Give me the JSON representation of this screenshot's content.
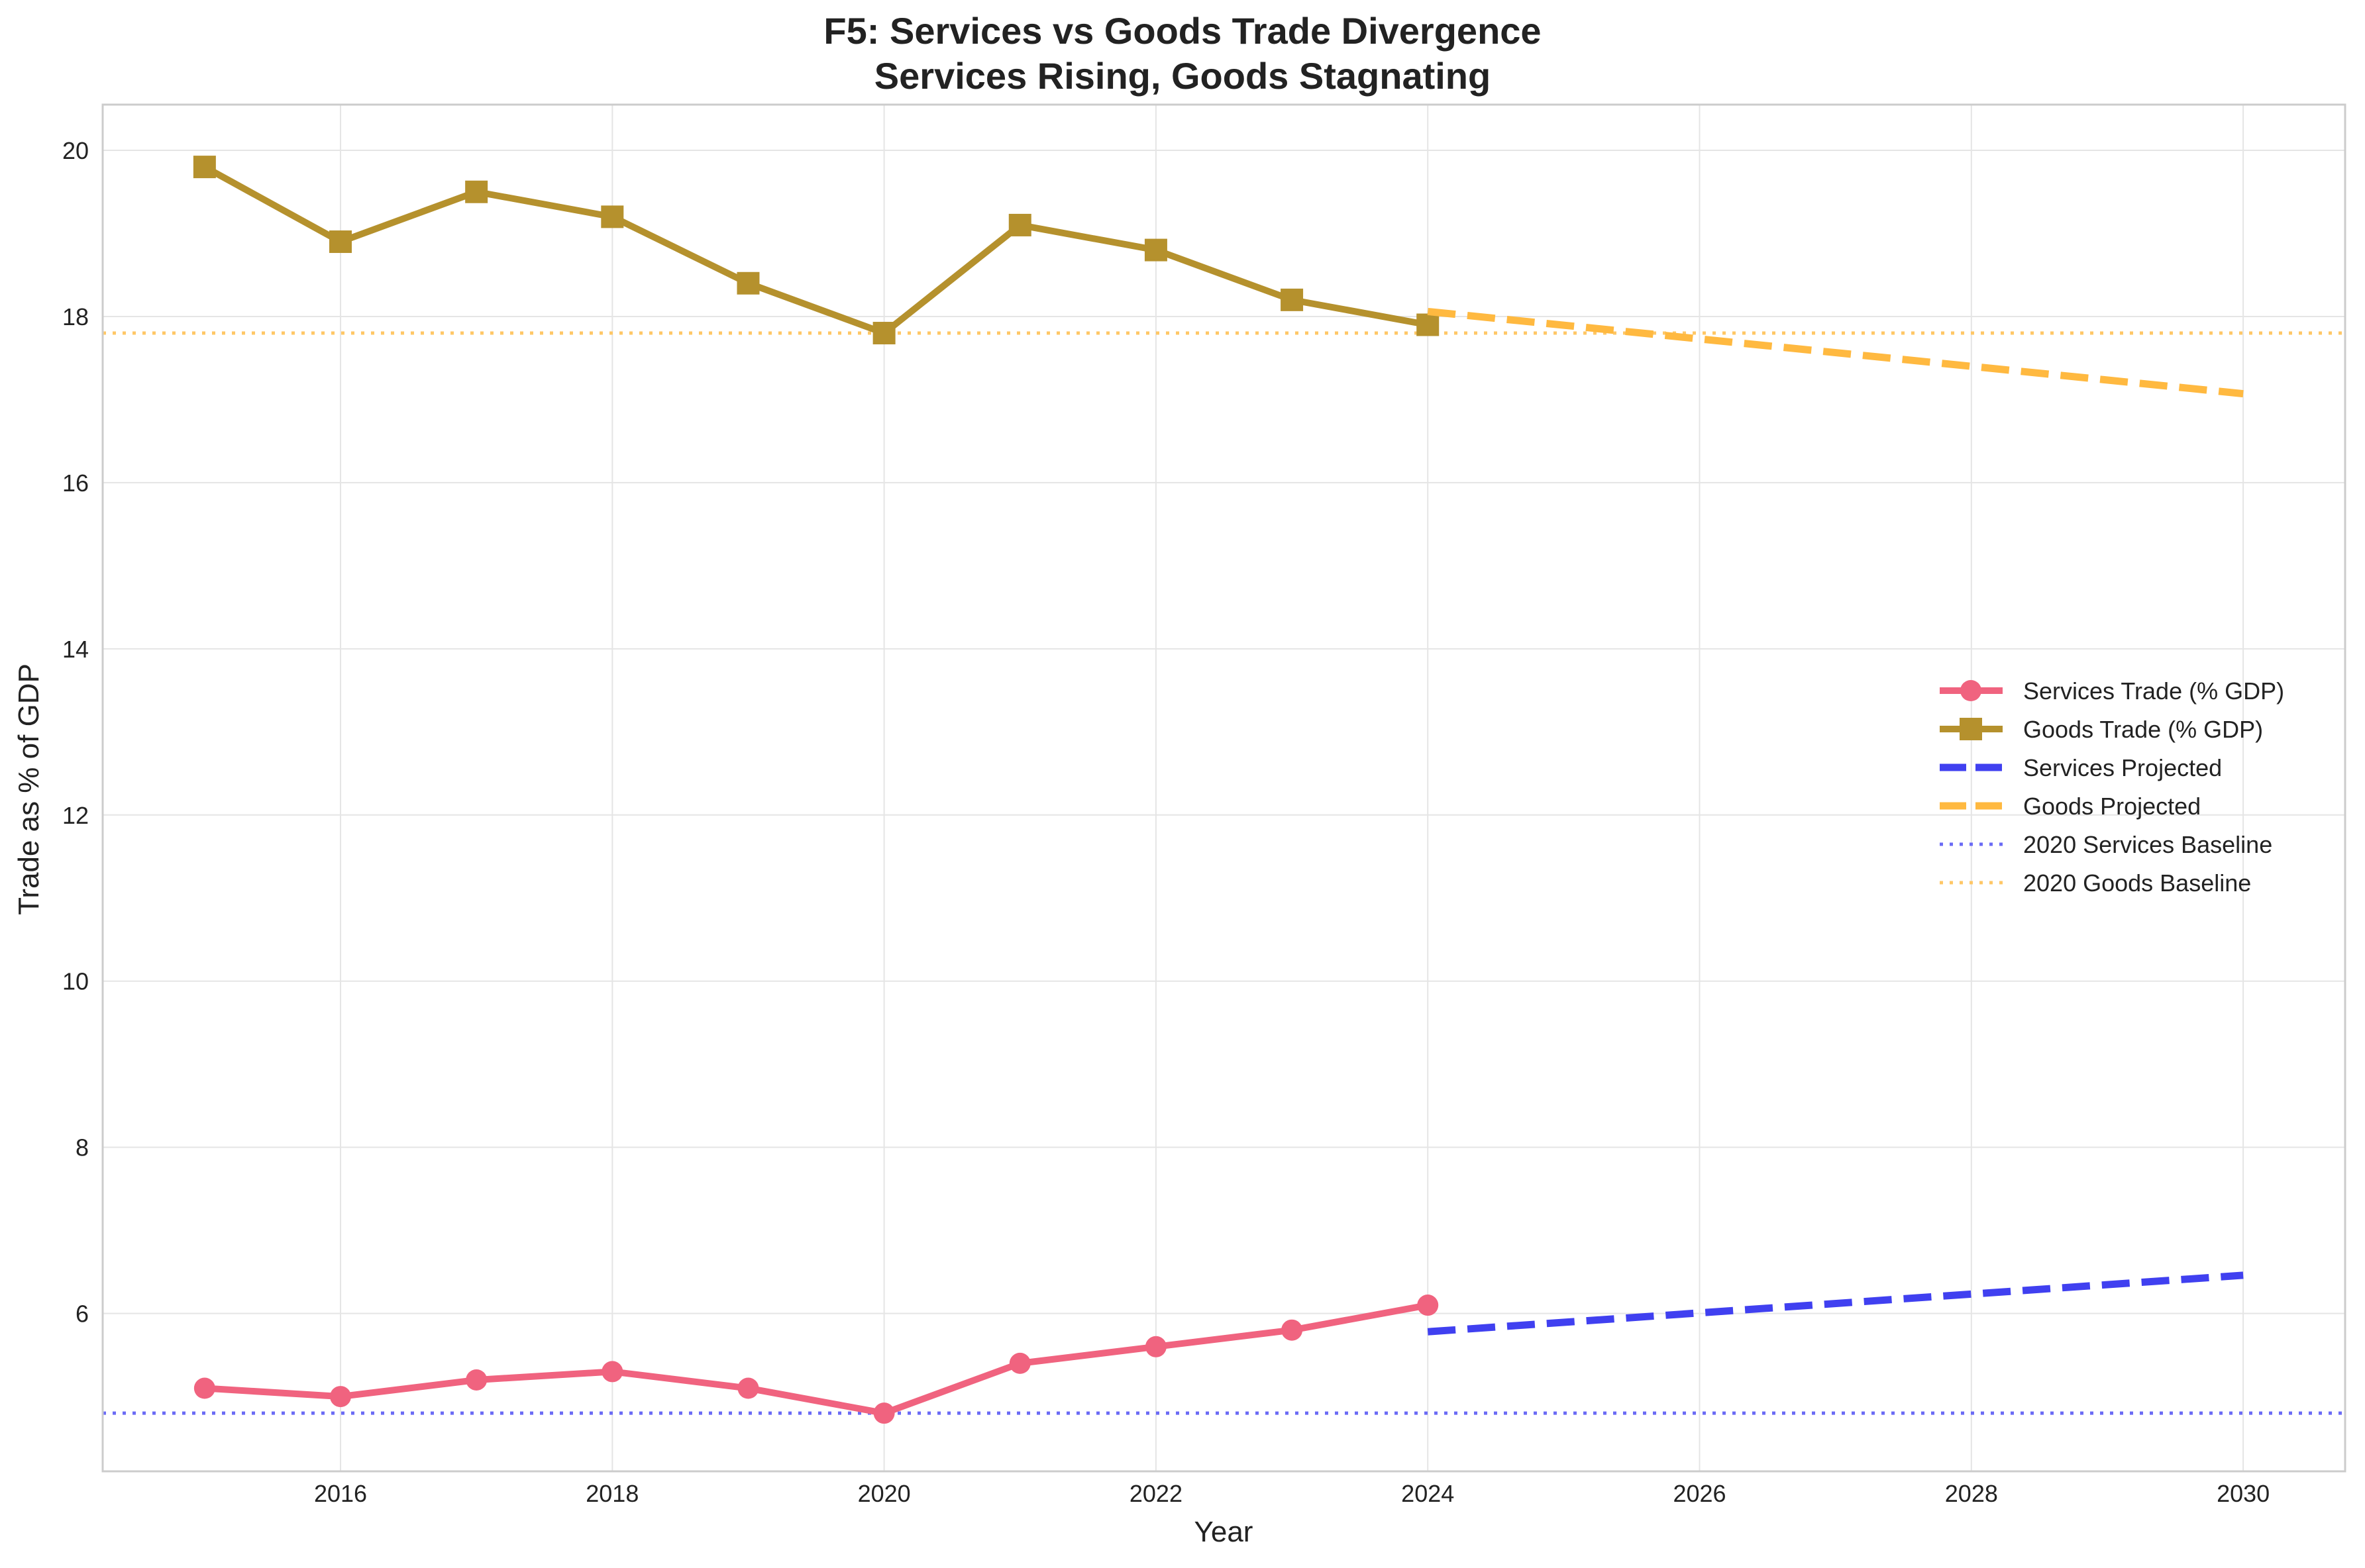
{
  "chart_data": {
    "type": "line",
    "title": "F5: Services vs Goods Trade Divergence",
    "subtitle": "Services Rising, Goods Stagnating",
    "xlabel": "Year",
    "ylabel": "Trade as % of GDP",
    "xlim": [
      2014.25,
      2030.75
    ],
    "ylim": [
      4.1,
      20.55
    ],
    "x_ticks": [
      2016,
      2018,
      2020,
      2022,
      2024,
      2026,
      2028,
      2030
    ],
    "y_ticks": [
      6,
      8,
      10,
      12,
      14,
      16,
      18,
      20
    ],
    "grid": true,
    "legend_position": "center-right",
    "series": [
      {
        "name": "Services Trade (% GDP)",
        "style": "solid-circle",
        "color": "#f0637f",
        "x": [
          2015,
          2016,
          2017,
          2018,
          2019,
          2020,
          2021,
          2022,
          2023,
          2024
        ],
        "values": [
          5.1,
          5.0,
          5.2,
          5.3,
          5.1,
          4.8,
          5.4,
          5.6,
          5.8,
          6.1
        ]
      },
      {
        "name": "Goods Trade (% GDP)",
        "style": "solid-square",
        "color": "#b5912d",
        "x": [
          2015,
          2016,
          2017,
          2018,
          2019,
          2020,
          2021,
          2022,
          2023,
          2024
        ],
        "values": [
          19.8,
          18.9,
          19.5,
          19.2,
          18.4,
          17.8,
          19.1,
          18.8,
          18.2,
          17.9
        ]
      },
      {
        "name": "Services Projected",
        "style": "dashed",
        "color": "#4040f0",
        "x": [
          2024,
          2030
        ],
        "values": [
          5.78,
          6.46
        ]
      },
      {
        "name": "Goods Projected",
        "style": "dashed",
        "color": "#ffb940",
        "x": [
          2024,
          2030
        ],
        "values": [
          18.06,
          17.07
        ]
      },
      {
        "name": "2020 Services Baseline",
        "style": "dotted-hline",
        "color": "#6b6bf5",
        "values": [
          4.8
        ]
      },
      {
        "name": "2020 Goods Baseline",
        "style": "dotted-hline",
        "color": "#ffc766",
        "values": [
          17.8
        ]
      }
    ]
  }
}
